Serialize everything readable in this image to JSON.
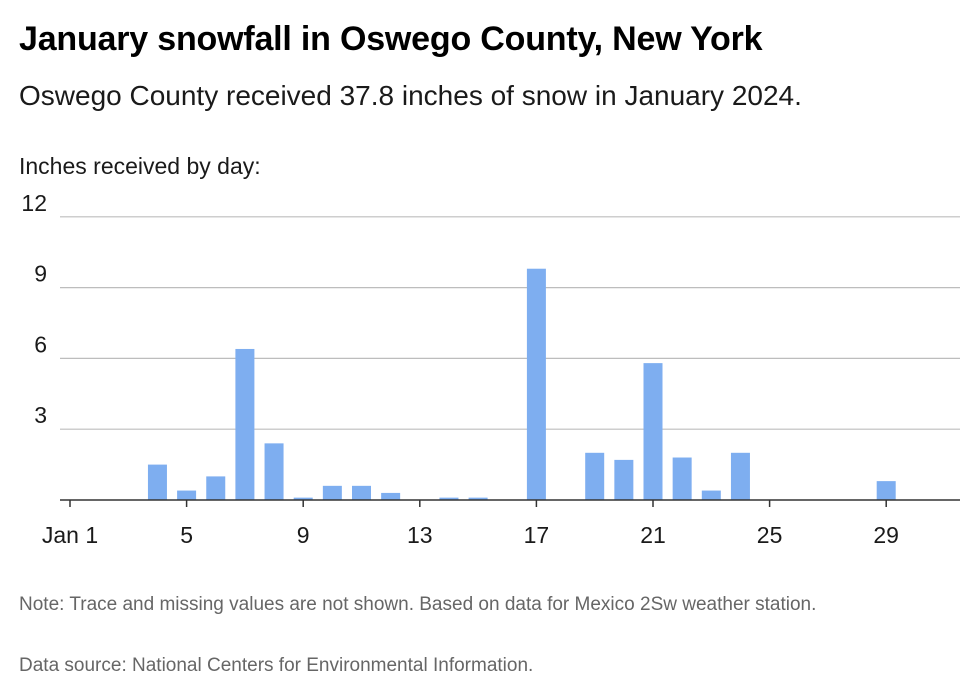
{
  "title": "January snowfall in Oswego County, New York",
  "subtitle": "Oswego County received 37.8 inches of snow in January 2024.",
  "axis_caption": "Inches received by day:",
  "note": "Note: Trace and missing values are not shown. Based on data for Mexico 2Sw weather station.",
  "source": "Data source: National Centers for Environmental Information.",
  "colors": {
    "bar": "#7eaef0",
    "grid": "#bdbdbd",
    "axis": "#333333"
  },
  "chart_data": {
    "type": "bar",
    "title": "January snowfall in Oswego County, New York",
    "subtitle": "Oswego County received 37.8 inches of snow in January 2024.",
    "ylabel": "Inches received by day:",
    "xlabel": "",
    "x": [
      1,
      2,
      3,
      4,
      5,
      6,
      7,
      8,
      9,
      10,
      11,
      12,
      13,
      14,
      15,
      16,
      17,
      18,
      19,
      20,
      21,
      22,
      23,
      24,
      25,
      26,
      27,
      28,
      29,
      30,
      31
    ],
    "values": [
      0,
      0,
      0,
      1.5,
      0.4,
      1.0,
      6.4,
      2.4,
      0.1,
      0.6,
      0.6,
      0.3,
      0,
      0.1,
      0.1,
      0,
      9.8,
      0,
      2.0,
      1.7,
      5.8,
      1.8,
      0.4,
      2.0,
      0,
      0,
      0,
      0,
      0.8,
      0,
      0
    ],
    "x_ticks": [
      {
        "x": 1,
        "label": "Jan 1"
      },
      {
        "x": 5,
        "label": "5"
      },
      {
        "x": 9,
        "label": "9"
      },
      {
        "x": 13,
        "label": "13"
      },
      {
        "x": 17,
        "label": "17"
      },
      {
        "x": 21,
        "label": "21"
      },
      {
        "x": 25,
        "label": "25"
      },
      {
        "x": 29,
        "label": "29"
      }
    ],
    "y_ticks": [
      3,
      6,
      9,
      12
    ],
    "ylim": [
      0,
      12
    ],
    "grid": true,
    "legend": "none"
  }
}
